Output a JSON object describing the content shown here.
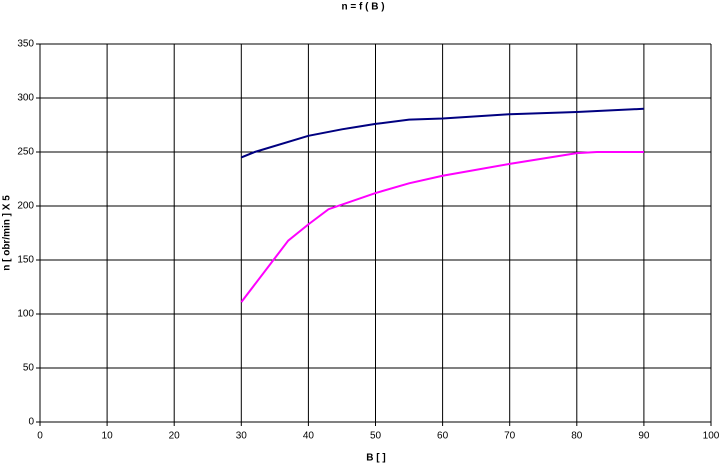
{
  "chart_data": {
    "type": "line",
    "title": "n = f ( B )",
    "x_label": "B [   ]",
    "y_label": "n  [ obr/min ]  X  5",
    "xlim": [
      0,
      100
    ],
    "xticks": [
      0,
      10,
      20,
      30,
      40,
      50,
      60,
      70,
      80,
      90,
      100
    ],
    "ylim": [
      0,
      350
    ],
    "yticks": [
      0,
      50,
      100,
      150,
      200,
      250,
      300,
      350
    ],
    "grid": true,
    "series": [
      {
        "color": "#000080",
        "x": [
          30,
          32,
          40,
          45,
          50,
          55,
          60,
          70,
          80,
          90
        ],
        "values": [
          245,
          250,
          265,
          271,
          276,
          280,
          281,
          285,
          287,
          290
        ]
      },
      {
        "color": "#ff00ff",
        "x": [
          30,
          37,
          40,
          43,
          50,
          55,
          60,
          70,
          80,
          83,
          90
        ],
        "values": [
          111,
          168,
          183,
          197,
          212,
          221,
          228,
          239,
          249,
          250,
          250
        ]
      }
    ]
  }
}
